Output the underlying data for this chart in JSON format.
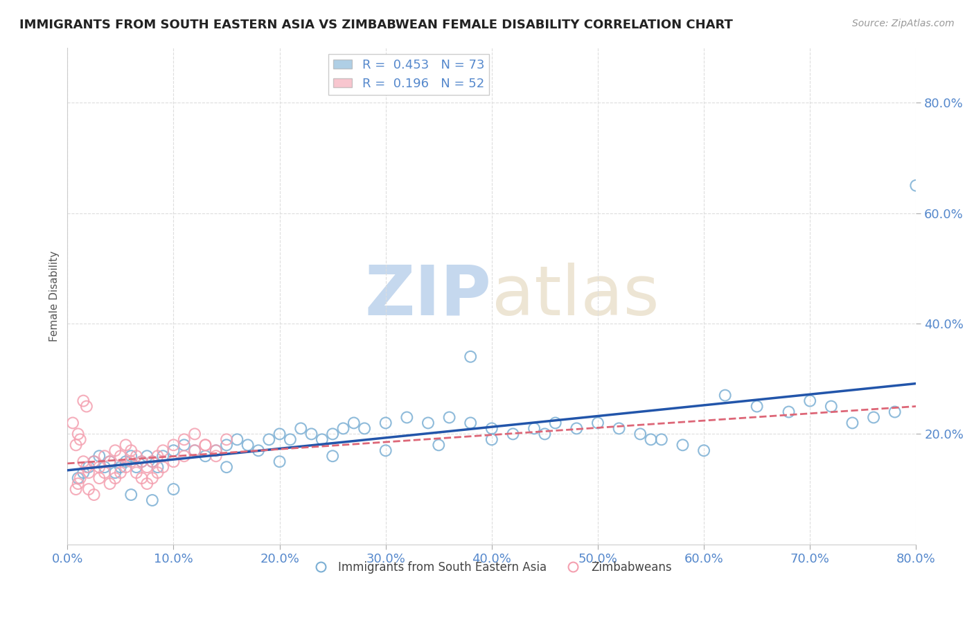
{
  "title": "IMMIGRANTS FROM SOUTH EASTERN ASIA VS ZIMBABWEAN FEMALE DISABILITY CORRELATION CHART",
  "source": "Source: ZipAtlas.com",
  "ylabel": "Female Disability",
  "xlim": [
    0.0,
    0.8
  ],
  "ylim": [
    0.0,
    0.9
  ],
  "yticks": [
    0.2,
    0.4,
    0.6,
    0.8
  ],
  "xticks": [
    0.0,
    0.1,
    0.2,
    0.3,
    0.4,
    0.5,
    0.6,
    0.7,
    0.8
  ],
  "legend_blue_r": "0.453",
  "legend_blue_n": "73",
  "legend_pink_r": "0.196",
  "legend_pink_n": "52",
  "blue_color": "#7BAFD4",
  "pink_color": "#F4A0B0",
  "line_blue_color": "#2255AA",
  "line_pink_color": "#DD6677",
  "watermark_zip": "ZIP",
  "watermark_atlas": "atlas",
  "watermark_color": "#C5D8EE",
  "background_color": "#FFFFFF",
  "title_color": "#222222",
  "axis_label_color": "#555555",
  "tick_label_color": "#5588CC",
  "blue_points_x": [
    0.02,
    0.01,
    0.015,
    0.025,
    0.03,
    0.035,
    0.04,
    0.045,
    0.05,
    0.055,
    0.06,
    0.065,
    0.07,
    0.075,
    0.08,
    0.085,
    0.09,
    0.1,
    0.11,
    0.12,
    0.13,
    0.14,
    0.15,
    0.16,
    0.17,
    0.18,
    0.19,
    0.2,
    0.21,
    0.22,
    0.23,
    0.24,
    0.25,
    0.26,
    0.27,
    0.28,
    0.3,
    0.32,
    0.34,
    0.36,
    0.38,
    0.4,
    0.42,
    0.44,
    0.46,
    0.48,
    0.5,
    0.52,
    0.54,
    0.56,
    0.58,
    0.6,
    0.38,
    0.55,
    0.62,
    0.65,
    0.68,
    0.7,
    0.72,
    0.74,
    0.76,
    0.78,
    0.8,
    0.15,
    0.2,
    0.25,
    0.3,
    0.35,
    0.4,
    0.45,
    0.1,
    0.08,
    0.06
  ],
  "blue_points_y": [
    0.14,
    0.12,
    0.13,
    0.15,
    0.16,
    0.14,
    0.15,
    0.13,
    0.14,
    0.15,
    0.16,
    0.14,
    0.15,
    0.16,
    0.15,
    0.14,
    0.16,
    0.17,
    0.18,
    0.17,
    0.16,
    0.17,
    0.18,
    0.19,
    0.18,
    0.17,
    0.19,
    0.2,
    0.19,
    0.21,
    0.2,
    0.19,
    0.2,
    0.21,
    0.22,
    0.21,
    0.22,
    0.23,
    0.22,
    0.23,
    0.22,
    0.21,
    0.2,
    0.21,
    0.22,
    0.21,
    0.22,
    0.21,
    0.2,
    0.19,
    0.18,
    0.17,
    0.34,
    0.19,
    0.27,
    0.25,
    0.24,
    0.26,
    0.25,
    0.22,
    0.23,
    0.24,
    0.65,
    0.14,
    0.15,
    0.16,
    0.17,
    0.18,
    0.19,
    0.2,
    0.1,
    0.08,
    0.09
  ],
  "pink_points_x": [
    0.005,
    0.008,
    0.01,
    0.012,
    0.015,
    0.018,
    0.02,
    0.025,
    0.03,
    0.035,
    0.04,
    0.045,
    0.05,
    0.055,
    0.06,
    0.065,
    0.07,
    0.075,
    0.08,
    0.085,
    0.09,
    0.1,
    0.11,
    0.12,
    0.13,
    0.14,
    0.15,
    0.008,
    0.01,
    0.012,
    0.015,
    0.018,
    0.02,
    0.025,
    0.03,
    0.035,
    0.04,
    0.045,
    0.05,
    0.055,
    0.06,
    0.065,
    0.07,
    0.075,
    0.08,
    0.085,
    0.09,
    0.1,
    0.11,
    0.12,
    0.13,
    0.14
  ],
  "pink_points_y": [
    0.22,
    0.18,
    0.2,
    0.19,
    0.15,
    0.14,
    0.13,
    0.15,
    0.14,
    0.16,
    0.15,
    0.17,
    0.16,
    0.18,
    0.17,
    0.16,
    0.15,
    0.14,
    0.15,
    0.16,
    0.17,
    0.18,
    0.19,
    0.2,
    0.18,
    0.17,
    0.19,
    0.1,
    0.11,
    0.12,
    0.26,
    0.25,
    0.1,
    0.09,
    0.12,
    0.13,
    0.11,
    0.12,
    0.13,
    0.14,
    0.15,
    0.13,
    0.12,
    0.11,
    0.12,
    0.13,
    0.14,
    0.15,
    0.16,
    0.17,
    0.18,
    0.16
  ]
}
